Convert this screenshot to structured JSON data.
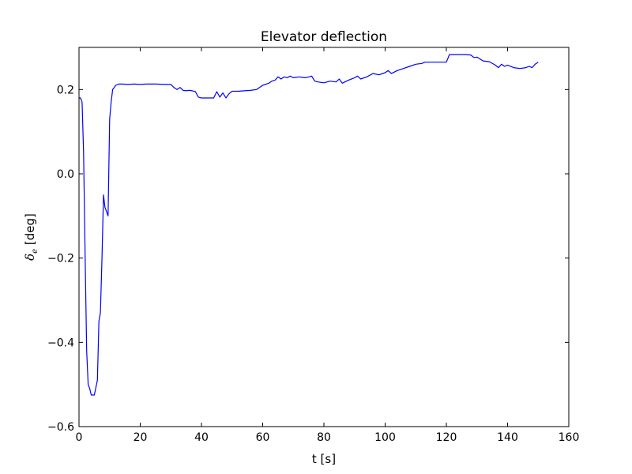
{
  "chart_data": {
    "type": "line",
    "title": "Elevator deflection",
    "xlabel": "t [s]",
    "ylabel_symbol": "δ",
    "ylabel_subscript": "e",
    "ylabel_unit": " [deg]",
    "xlim": [
      0,
      160
    ],
    "ylim": [
      -0.6,
      0.3
    ],
    "xticks": [
      0,
      20,
      40,
      60,
      80,
      100,
      120,
      140,
      160
    ],
    "xtick_labels": [
      "0",
      "20",
      "40",
      "60",
      "80",
      "100",
      "120",
      "140",
      "160"
    ],
    "yticks": [
      -0.6,
      -0.4,
      -0.2,
      0.0,
      0.2
    ],
    "ytick_labels": [
      "−0.6",
      "−0.4",
      "−0.2",
      "0.0",
      "0.2"
    ],
    "grid": false,
    "series": [
      {
        "color": "#0000ff",
        "x": [
          0,
          0.5,
          1.0,
          1.5,
          2.0,
          2.5,
          3.0,
          3.5,
          4.0,
          5.0,
          6.0,
          6.5,
          7.0,
          7.5,
          8.0,
          8.5,
          9.0,
          9.5,
          10.0,
          10.5,
          11.0,
          11.5,
          12.0,
          13.0,
          14.0,
          16,
          18,
          20,
          22,
          25,
          28,
          30,
          31,
          32,
          33,
          34,
          35,
          36,
          37,
          38,
          39,
          40,
          42,
          44,
          45,
          46,
          47,
          48,
          49,
          50,
          52,
          54,
          56,
          58,
          60,
          62,
          63,
          64,
          65,
          66,
          67,
          68,
          69,
          70,
          72,
          74,
          76,
          77,
          78,
          80,
          82,
          84,
          85,
          86,
          88,
          90,
          91,
          92,
          94,
          96,
          98,
          100,
          101,
          102,
          104,
          106,
          108,
          110,
          112,
          113,
          114,
          116,
          118,
          120,
          121,
          122,
          124,
          126,
          128,
          129,
          130,
          132,
          134,
          136,
          137,
          138,
          139,
          140,
          142,
          144,
          146,
          147,
          148,
          149,
          150
        ],
        "y": [
          0.18,
          0.18,
          0.17,
          0.05,
          -0.2,
          -0.42,
          -0.5,
          -0.51,
          -0.525,
          -0.525,
          -0.49,
          -0.35,
          -0.33,
          -0.2,
          -0.05,
          -0.08,
          -0.09,
          -0.1,
          0.13,
          0.17,
          0.2,
          0.205,
          0.21,
          0.213,
          0.213,
          0.212,
          0.213,
          0.212,
          0.213,
          0.213,
          0.212,
          0.212,
          0.205,
          0.2,
          0.205,
          0.198,
          0.197,
          0.198,
          0.197,
          0.195,
          0.182,
          0.18,
          0.18,
          0.18,
          0.195,
          0.182,
          0.192,
          0.18,
          0.19,
          0.196,
          0.196,
          0.197,
          0.198,
          0.2,
          0.21,
          0.215,
          0.22,
          0.222,
          0.23,
          0.225,
          0.23,
          0.228,
          0.232,
          0.228,
          0.23,
          0.228,
          0.232,
          0.22,
          0.218,
          0.216,
          0.22,
          0.218,
          0.225,
          0.215,
          0.222,
          0.228,
          0.232,
          0.225,
          0.23,
          0.238,
          0.235,
          0.24,
          0.245,
          0.238,
          0.245,
          0.25,
          0.255,
          0.26,
          0.262,
          0.265,
          0.265,
          0.265,
          0.265,
          0.265,
          0.283,
          0.283,
          0.283,
          0.283,
          0.282,
          0.276,
          0.277,
          0.268,
          0.266,
          0.258,
          0.252,
          0.26,
          0.255,
          0.258,
          0.252,
          0.25,
          0.252,
          0.255,
          0.252,
          0.26,
          0.265
        ]
      }
    ]
  }
}
